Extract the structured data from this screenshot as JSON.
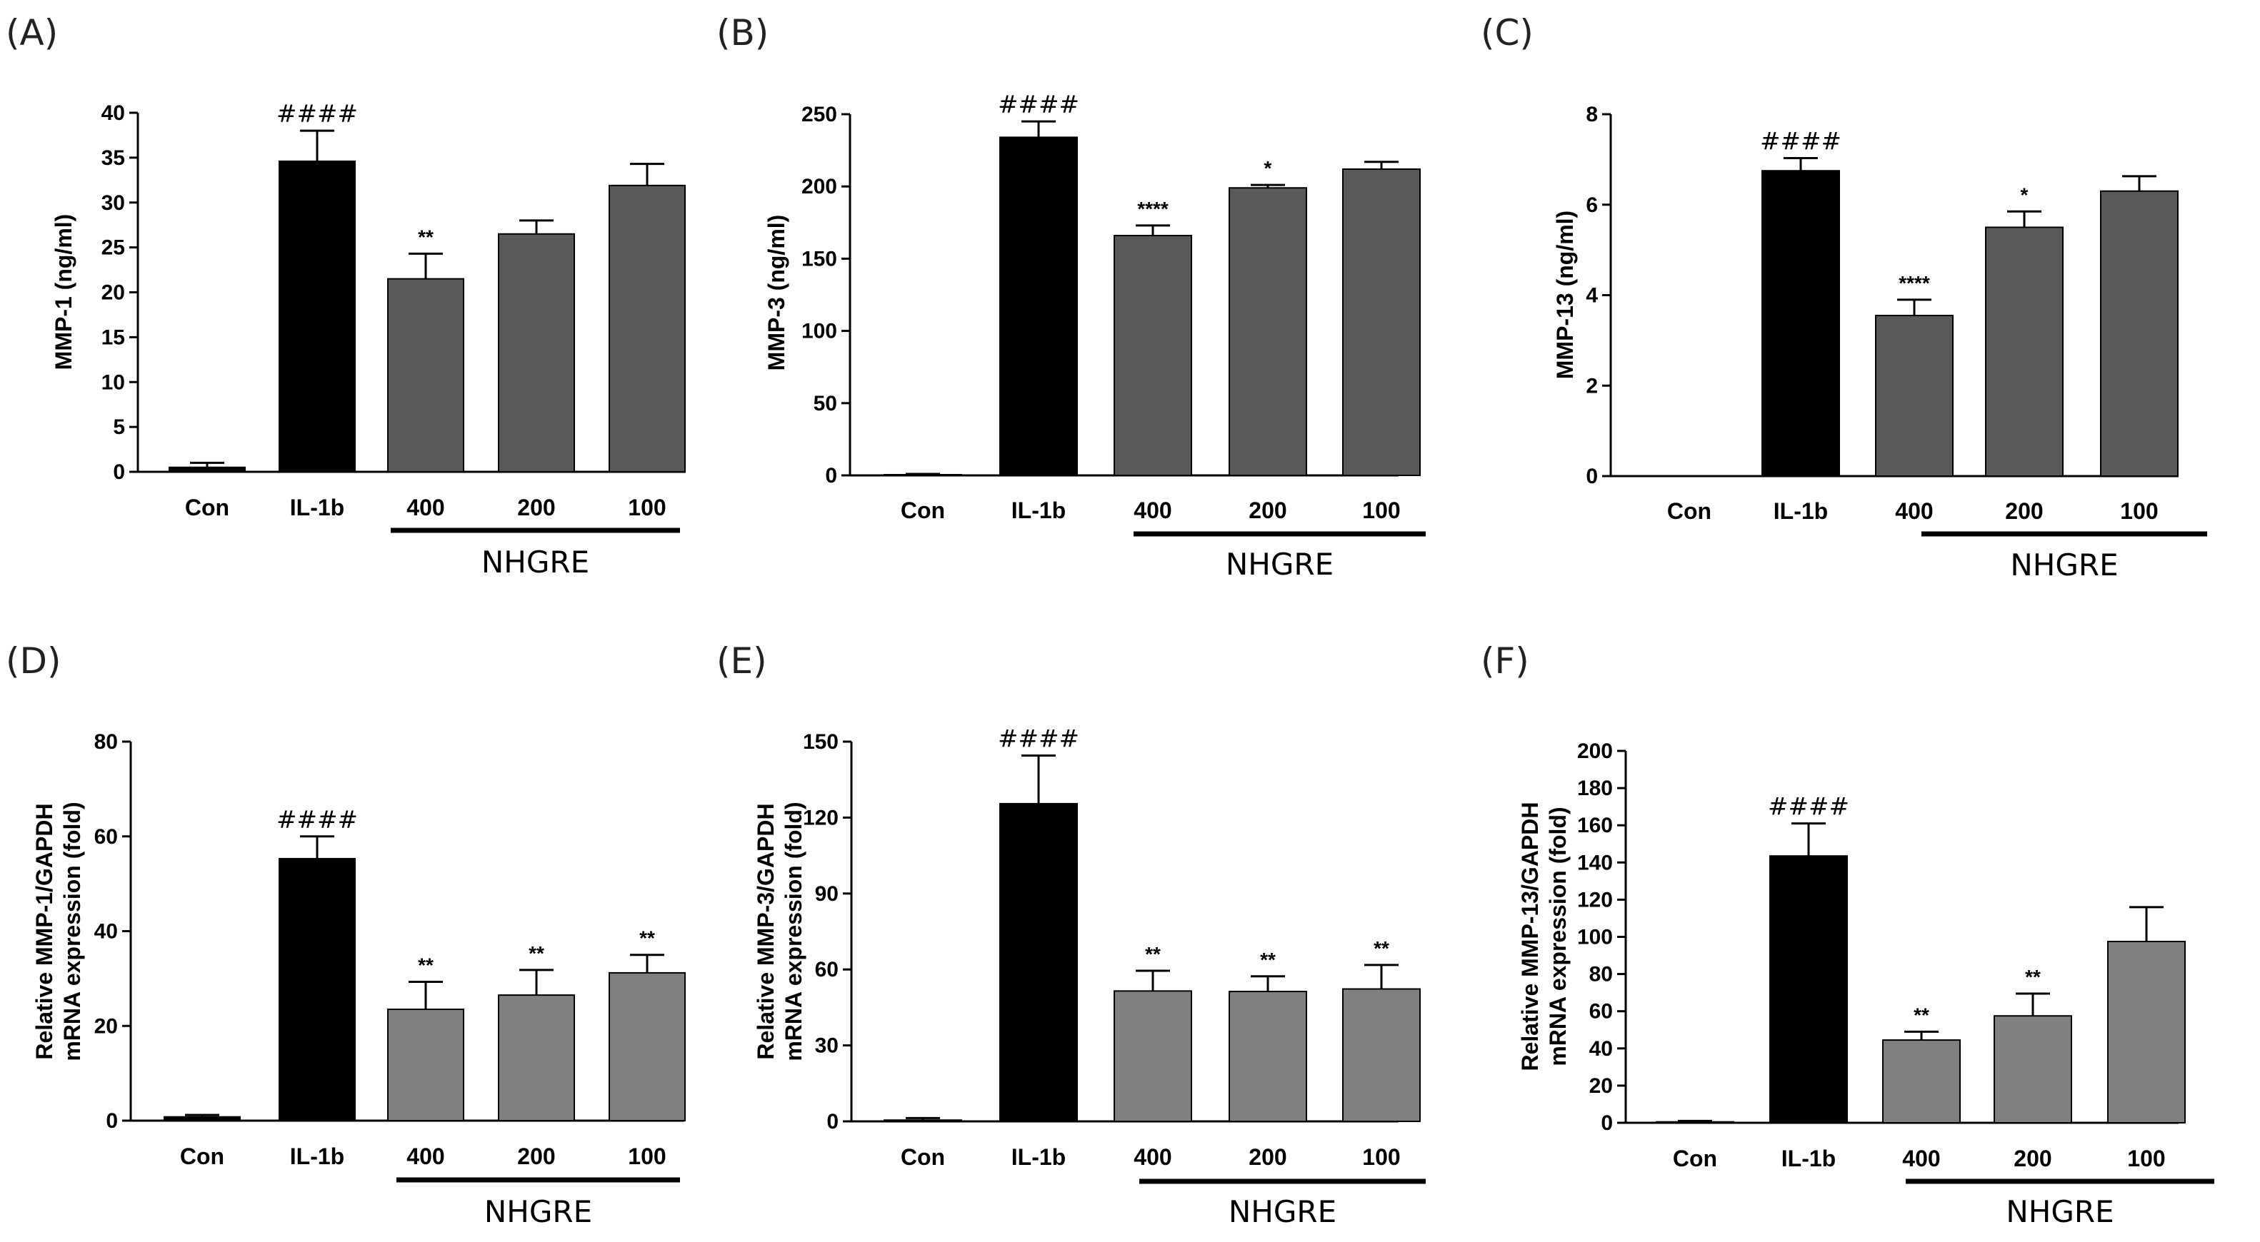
{
  "chart_data": [
    {
      "panel": "(A)",
      "type": "bar",
      "categories": [
        "Con",
        "IL-1b",
        "400",
        "200",
        "100"
      ],
      "values": [
        0.5,
        34.6,
        21.5,
        26.5,
        31.9
      ],
      "errors": [
        0.5,
        3.4,
        2.8,
        1.5,
        2.4
      ],
      "annotations": [
        "",
        "####",
        "**",
        "",
        ""
      ],
      "bar_colors": [
        "#000000",
        "#000000",
        "#595959",
        "#595959",
        "#595959"
      ],
      "ylabel": "MMP-1 (ng/ml)",
      "ylim": [
        0,
        40
      ],
      "yticks": [
        0,
        5,
        10,
        15,
        20,
        25,
        30,
        35,
        40
      ],
      "group_label": "NHGRE",
      "group_range": [
        2,
        4
      ]
    },
    {
      "panel": "(B)",
      "type": "bar",
      "categories": [
        "Con",
        "IL-1b",
        "400",
        "200",
        "100"
      ],
      "values": [
        0.5,
        234,
        166,
        199,
        212
      ],
      "errors": [
        0.5,
        11,
        7,
        2,
        5
      ],
      "annotations": [
        "",
        "####",
        "****",
        "*",
        ""
      ],
      "bar_colors": [
        "#000000",
        "#000000",
        "#595959",
        "#595959",
        "#595959"
      ],
      "ylabel": "MMP-3 (ng/ml)",
      "ylim": [
        0,
        250
      ],
      "yticks": [
        0,
        50,
        100,
        150,
        200,
        250
      ],
      "group_label": "NHGRE",
      "group_range": [
        2,
        4
      ]
    },
    {
      "panel": "(C)",
      "type": "bar",
      "categories": [
        "Con",
        "IL-1b",
        "400",
        "200",
        "100"
      ],
      "values": [
        0.0,
        6.75,
        3.55,
        5.5,
        6.3
      ],
      "errors": [
        0,
        0.28,
        0.35,
        0.35,
        0.33
      ],
      "annotations": [
        "",
        "####",
        "****",
        "*",
        ""
      ],
      "bar_colors": [
        "#000000",
        "#000000",
        "#595959",
        "#595959",
        "#595959"
      ],
      "ylabel": "MMP-13 (ng/ml)",
      "ylim": [
        0,
        8
      ],
      "yticks": [
        0,
        2,
        4,
        6,
        8
      ],
      "group_label": "NHGRE",
      "group_range": [
        2,
        4
      ]
    },
    {
      "panel": "(D)",
      "type": "bar",
      "categories": [
        "Con",
        "IL-1b",
        "400",
        "200",
        "100"
      ],
      "values": [
        0.8,
        55.3,
        23.5,
        26.5,
        31.2
      ],
      "errors": [
        0.4,
        4.7,
        5.8,
        5.3,
        3.8
      ],
      "annotations": [
        "",
        "####",
        "**",
        "**",
        "**"
      ],
      "bar_colors": [
        "#000000",
        "#000000",
        "#808080",
        "#808080",
        "#808080"
      ],
      "ylabel": "Relative MMP-1/GAPDH|mRNA expression (fold)",
      "ylim": [
        0,
        80
      ],
      "yticks": [
        0,
        20,
        40,
        60,
        80
      ],
      "group_label": "NHGRE",
      "group_range": [
        2,
        4
      ]
    },
    {
      "panel": "(E)",
      "type": "bar",
      "categories": [
        "Con",
        "IL-1b",
        "400",
        "200",
        "100"
      ],
      "values": [
        0.5,
        125.5,
        51.5,
        51.3,
        52.3
      ],
      "errors": [
        0.8,
        19,
        8,
        6,
        9.5
      ],
      "annotations": [
        "",
        "####",
        "**",
        "**",
        "**"
      ],
      "bar_colors": [
        "#000000",
        "#000000",
        "#808080",
        "#808080",
        "#808080"
      ],
      "ylabel": "Relative MMP-3/GAPDH|mRNA expression (fold)",
      "ylim": [
        0,
        150
      ],
      "yticks": [
        0,
        30,
        60,
        90,
        120,
        150
      ],
      "group_label": "NHGRE",
      "group_range": [
        2,
        4
      ]
    },
    {
      "panel": "(F)",
      "type": "bar",
      "categories": [
        "Con",
        "IL-1b",
        "400",
        "200",
        "100"
      ],
      "values": [
        0.5,
        143.5,
        44.5,
        57.5,
        97.5
      ],
      "errors": [
        0.5,
        17.5,
        4.5,
        12,
        18.5
      ],
      "annotations": [
        "",
        "####",
        "**",
        "**",
        ""
      ],
      "bar_colors": [
        "#000000",
        "#000000",
        "#808080",
        "#808080",
        "#808080"
      ],
      "ylabel": "Relative MMP-13/GAPDH|mRNA expression (fold)",
      "ylim": [
        0,
        200
      ],
      "yticks": [
        0,
        20,
        40,
        60,
        80,
        100,
        120,
        140,
        160,
        180,
        200
      ],
      "group_label": "NHGRE",
      "group_range": [
        2,
        4
      ]
    }
  ]
}
